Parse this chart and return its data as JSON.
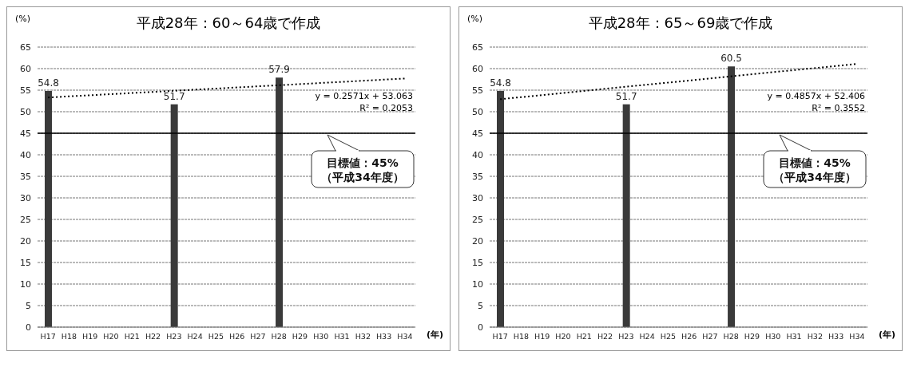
{
  "chart_data": [
    {
      "type": "bar",
      "title": "平成28年：60～64歳で作成",
      "ylabel": "(%)",
      "xlabel": "(年)",
      "categories": [
        "H17",
        "H18",
        "H19",
        "H20",
        "H21",
        "H22",
        "H23",
        "H24",
        "H25",
        "H26",
        "H27",
        "H28",
        "H29",
        "H30",
        "H31",
        "H32",
        "H33",
        "H34"
      ],
      "series": [
        {
          "color": "#3a3a3a",
          "values": [
            54.8,
            null,
            null,
            null,
            null,
            null,
            51.7,
            null,
            null,
            null,
            null,
            57.9,
            null,
            null,
            null,
            null,
            null,
            null
          ],
          "value_labels": [
            "54.8",
            null,
            null,
            null,
            null,
            null,
            "51.7",
            null,
            null,
            null,
            null,
            "57.9",
            null,
            null,
            null,
            null,
            null,
            null
          ]
        },
        {
          "type": "line",
          "color": "#000000",
          "line_style": "dotted",
          "marker": "none",
          "values": [
            53.3,
            null,
            null,
            null,
            null,
            null,
            null,
            null,
            null,
            null,
            null,
            null,
            null,
            null,
            null,
            null,
            null,
            57.7
          ]
        }
      ],
      "ylim": [
        0,
        65
      ],
      "yticks": [
        0,
        5,
        10,
        15,
        20,
        25,
        30,
        35,
        40,
        45,
        50,
        55,
        60,
        65
      ],
      "grid": "y",
      "ref_lines": [
        {
          "axis": "y",
          "value": 45,
          "label": "目標値：45%\n（平成34年度）",
          "color": "#000000"
        }
      ],
      "annotations": [
        "y = 0.2571x + 53.063",
        "R² = 0.2053"
      ]
    },
    {
      "type": "bar",
      "title": "平成28年：65～69歳で作成",
      "ylabel": "(%)",
      "xlabel": "(年)",
      "categories": [
        "H17",
        "H18",
        "H19",
        "H20",
        "H21",
        "H22",
        "H23",
        "H24",
        "H25",
        "H26",
        "H27",
        "H28",
        "H29",
        "H30",
        "H31",
        "H32",
        "H33",
        "H34"
      ],
      "series": [
        {
          "color": "#3a3a3a",
          "values": [
            54.8,
            null,
            null,
            null,
            null,
            null,
            51.7,
            null,
            null,
            null,
            null,
            60.5,
            null,
            null,
            null,
            null,
            null,
            null
          ],
          "value_labels": [
            "54.8",
            null,
            null,
            null,
            null,
            null,
            "51.7",
            null,
            null,
            null,
            null,
            "60.5",
            null,
            null,
            null,
            null,
            null,
            null
          ]
        },
        {
          "type": "line",
          "color": "#000000",
          "line_style": "dotted",
          "marker": "none",
          "values": [
            52.9,
            null,
            null,
            null,
            null,
            null,
            null,
            null,
            null,
            null,
            null,
            null,
            null,
            null,
            null,
            null,
            null,
            61.1
          ]
        }
      ],
      "ylim": [
        0,
        65
      ],
      "yticks": [
        0,
        5,
        10,
        15,
        20,
        25,
        30,
        35,
        40,
        45,
        50,
        55,
        60,
        65
      ],
      "grid": "y",
      "ref_lines": [
        {
          "axis": "y",
          "value": 45,
          "label": "目標値：45%\n（平成34年度）",
          "color": "#000000"
        }
      ],
      "annotations": [
        "y = 0.4857x + 52.406",
        "R² = 0.3552"
      ]
    }
  ]
}
